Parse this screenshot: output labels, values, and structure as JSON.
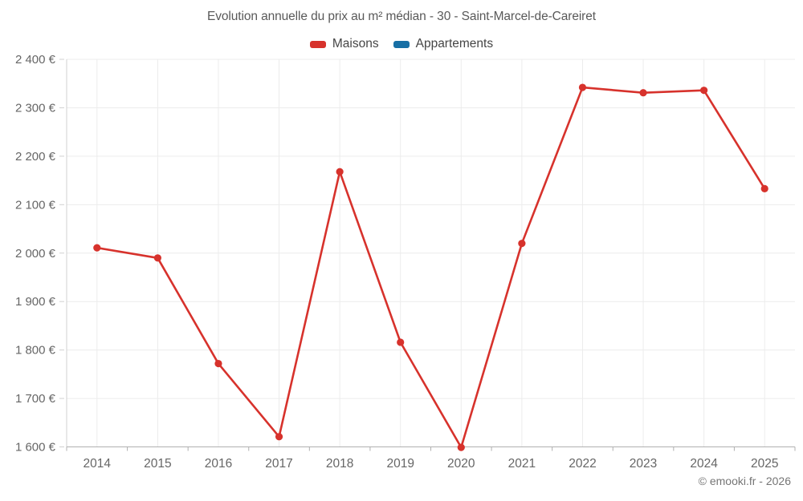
{
  "chart_data": {
    "type": "line",
    "title": "Evolution annuelle du prix au m² médian - 30 - Saint-Marcel-de-Careiret",
    "categories": [
      "2014",
      "2015",
      "2016",
      "2017",
      "2018",
      "2019",
      "2020",
      "2021",
      "2022",
      "2023",
      "2024",
      "2025"
    ],
    "series": [
      {
        "name": "Maisons",
        "color": "#d7322c",
        "values": [
          2011,
          1990,
          1772,
          1621,
          2168,
          1816,
          1599,
          2020,
          2342,
          2331,
          2336,
          2133
        ]
      },
      {
        "name": "Appartements",
        "color": "#176fa5",
        "values": []
      }
    ],
    "xlabel": "",
    "ylabel": "",
    "ylim": [
      1600,
      2400
    ],
    "y_tick_step": 100,
    "y_tick_labels": [
      "1 600 €",
      "1 700 €",
      "1 800 €",
      "1 900 €",
      "2 000 €",
      "2 100 €",
      "2 200 €",
      "2 300 €",
      "2 400 €"
    ],
    "grid": true,
    "legend_position": "top"
  },
  "footer": {
    "copyright": "© emooki.fr - 2026"
  },
  "colors": {
    "grid": "#ececec",
    "axis": "#b0b0b0",
    "left_axis": "#d0d0d0",
    "tick_label": "#666666",
    "title": "#595959",
    "legend_text": "#454545",
    "footer": "#757575"
  }
}
